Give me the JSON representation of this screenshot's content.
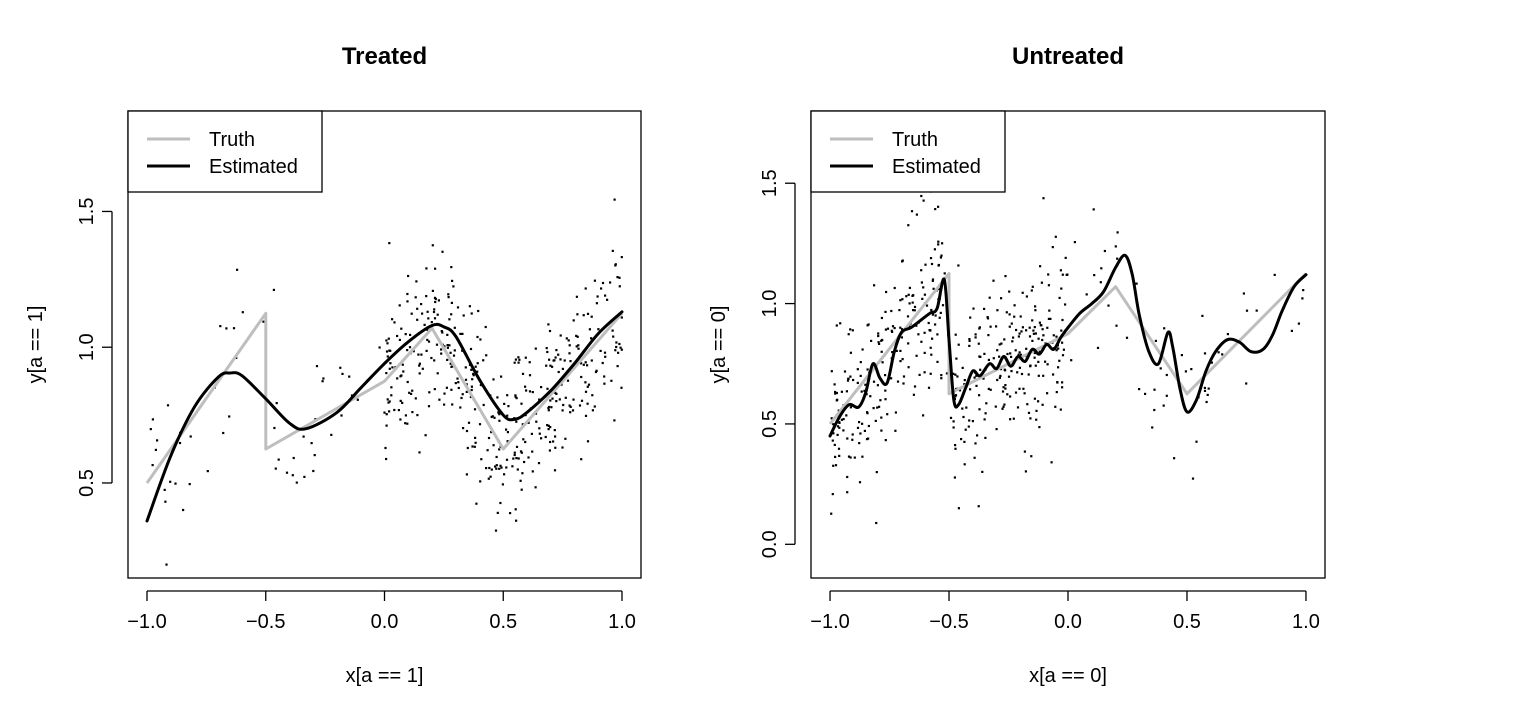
{
  "colors": {
    "truth": "#bebebe",
    "estimated": "#000000",
    "points": "#000000",
    "frame": "#000000"
  },
  "chart_data": [
    {
      "type": "scatter",
      "title": "Treated",
      "xlabel": "x[a == 1]",
      "ylabel": "y[a == 1]",
      "xlim": [
        -1.08,
        1.08
      ],
      "ylim": [
        0.15,
        1.87
      ],
      "xticks": [
        -1.0,
        -0.5,
        0.0,
        0.5,
        1.0
      ],
      "xtick_labels": [
        "−1.0",
        "−0.5",
        "0.0",
        "0.5",
        "1.0"
      ],
      "yticks": [
        0.5,
        1.0,
        1.5
      ],
      "ytick_labels": [
        "0.5",
        "1.0",
        "1.5"
      ],
      "legend": {
        "position": "top-left",
        "entries": [
          "Truth",
          "Estimated"
        ]
      },
      "series": [
        {
          "name": "Truth",
          "x": [
            -1.0,
            -0.5,
            -0.5,
            0.0,
            0.2,
            0.5,
            1.0
          ],
          "y": [
            0.5,
            1.125,
            0.625,
            0.875,
            1.07,
            0.625,
            1.125
          ]
        },
        {
          "name": "Estimated",
          "x": [
            -1.0,
            -0.9,
            -0.8,
            -0.7,
            -0.65,
            -0.6,
            -0.5,
            -0.4,
            -0.33,
            -0.2,
            -0.1,
            0.0,
            0.1,
            0.2,
            0.25,
            0.3,
            0.4,
            0.5,
            0.55,
            0.6,
            0.7,
            0.8,
            0.9,
            1.0
          ],
          "y": [
            0.36,
            0.6,
            0.78,
            0.89,
            0.905,
            0.895,
            0.81,
            0.72,
            0.7,
            0.76,
            0.85,
            0.94,
            1.02,
            1.08,
            1.075,
            1.04,
            0.88,
            0.75,
            0.735,
            0.76,
            0.84,
            0.94,
            1.05,
            1.13
          ]
        }
      ],
      "points": {
        "n": 480,
        "seed": 11,
        "noise": 0.16,
        "bins": [
          {
            "range": [
              -1.0,
              -0.5
            ],
            "n": 28
          },
          {
            "range": [
              -0.5,
              0.0
            ],
            "n": 27
          },
          {
            "range": [
              0.0,
              0.35
            ],
            "n": 160
          },
          {
            "range": [
              0.35,
              0.75
            ],
            "n": 175
          },
          {
            "range": [
              0.75,
              1.0
            ],
            "n": 90
          }
        ]
      }
    },
    {
      "type": "scatter",
      "title": "Untreated",
      "xlabel": "x[a == 0]",
      "ylabel": "y[a == 0]",
      "xlim": [
        -1.08,
        1.08
      ],
      "ylim": [
        -0.14,
        1.8
      ],
      "xticks": [
        -1.0,
        -0.5,
        0.0,
        0.5,
        1.0
      ],
      "xtick_labels": [
        "−1.0",
        "−0.5",
        "0.0",
        "0.5",
        "1.0"
      ],
      "yticks": [
        0.0,
        0.5,
        1.0,
        1.5
      ],
      "ytick_labels": [
        "0.0",
        "0.5",
        "1.0",
        "1.5"
      ],
      "legend": {
        "position": "top-left",
        "entries": [
          "Truth",
          "Estimated"
        ]
      },
      "series": [
        {
          "name": "Truth",
          "x": [
            -1.0,
            -0.5,
            -0.5,
            0.0,
            0.2,
            0.5,
            1.0
          ],
          "y": [
            0.5,
            1.125,
            0.625,
            0.875,
            1.07,
            0.625,
            1.125
          ]
        },
        {
          "name": "Estimated",
          "x": [
            -1.0,
            -0.96,
            -0.92,
            -0.88,
            -0.85,
            -0.82,
            -0.79,
            -0.76,
            -0.73,
            -0.7,
            -0.66,
            -0.62,
            -0.58,
            -0.55,
            -0.52,
            -0.5,
            -0.48,
            -0.46,
            -0.43,
            -0.4,
            -0.37,
            -0.33,
            -0.3,
            -0.27,
            -0.24,
            -0.21,
            -0.18,
            -0.15,
            -0.12,
            -0.09,
            -0.06,
            -0.03,
            0.0,
            0.05,
            0.1,
            0.15,
            0.2,
            0.24,
            0.27,
            0.3,
            0.34,
            0.38,
            0.42,
            0.44,
            0.47,
            0.5,
            0.54,
            0.58,
            0.62,
            0.67,
            0.72,
            0.77,
            0.82,
            0.86,
            0.9,
            0.95,
            1.0
          ],
          "y": [
            0.45,
            0.53,
            0.58,
            0.57,
            0.63,
            0.75,
            0.69,
            0.67,
            0.8,
            0.88,
            0.9,
            0.93,
            0.96,
            0.98,
            1.1,
            0.85,
            0.6,
            0.58,
            0.65,
            0.72,
            0.7,
            0.75,
            0.73,
            0.78,
            0.74,
            0.78,
            0.76,
            0.81,
            0.79,
            0.83,
            0.81,
            0.86,
            0.9,
            0.96,
            1.0,
            1.05,
            1.15,
            1.2,
            1.12,
            0.95,
            0.8,
            0.75,
            0.88,
            0.82,
            0.65,
            0.55,
            0.6,
            0.72,
            0.8,
            0.85,
            0.84,
            0.8,
            0.81,
            0.87,
            0.97,
            1.07,
            1.12
          ]
        }
      ],
      "points": {
        "n": 520,
        "seed": 23,
        "noise": 0.18,
        "bins": [
          {
            "range": [
              -1.0,
              -0.5
            ],
            "n": 230
          },
          {
            "range": [
              -0.5,
              0.0
            ],
            "n": 235
          },
          {
            "range": [
              0.0,
              0.5
            ],
            "n": 30
          },
          {
            "range": [
              0.5,
              1.0
            ],
            "n": 25
          }
        ]
      }
    }
  ]
}
